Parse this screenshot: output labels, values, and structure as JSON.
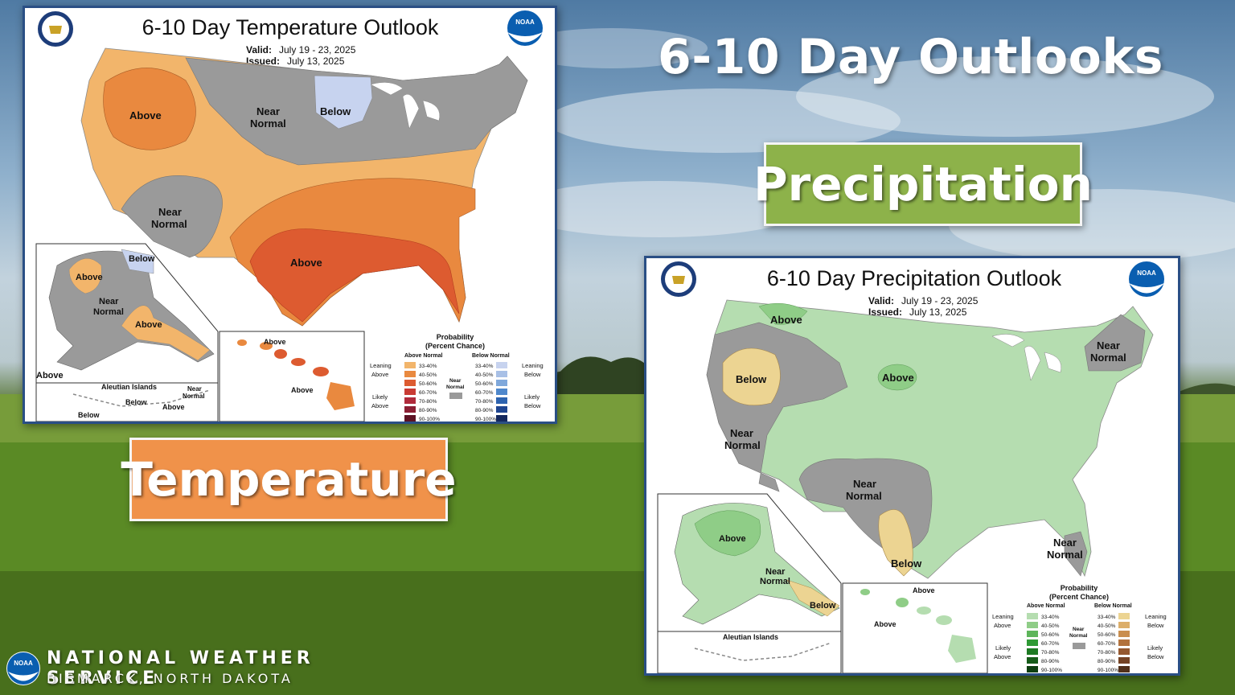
{
  "page_title": "6-10 Day Outlooks",
  "tags": {
    "precipitation": "Precipitation",
    "temperature": "Temperature"
  },
  "footer": {
    "line1": "NATIONAL WEATHER SERVICE",
    "line2": "BISMARCK, NORTH DAKOTA",
    "logo_text": "NOAA"
  },
  "temperature_map": {
    "title": "6-10 Day Temperature Outlook",
    "valid_label": "Valid:",
    "valid_value": "July 19 - 23, 2025",
    "issued_label": "Issued:",
    "issued_value": "July 13, 2025",
    "regions": {
      "above_nw": "Above",
      "near_normal_north": "Near",
      "near_normal_north2": "Normal",
      "below_mn": "Below",
      "near_normal_sw": "Near",
      "near_normal_sw2": "Normal",
      "above_south": "Above"
    },
    "alaska": {
      "below": "Below",
      "above_w": "Above",
      "near": "Near",
      "normal": "Normal",
      "above_s": "Above",
      "above_left": "Above",
      "aleutian_title": "Aleutian Islands",
      "aleutian_below1": "Below",
      "aleutian_below2": "Below",
      "aleutian_above": "Above",
      "aleutian_near": "Near",
      "aleutian_normal": "Normal"
    },
    "hawaii": {
      "above1": "Above",
      "above2": "Above"
    },
    "legend": {
      "title1": "Probability",
      "title2": "(Percent Chance)",
      "above_header": "Above Normal",
      "below_header": "Below Normal",
      "leaning_above": "Leaning",
      "leaning_above2": "Above",
      "likely_above": "Likely",
      "likely_above2": "Above",
      "leaning_below": "Leaning",
      "leaning_below2": "Below",
      "likely_below": "Likely",
      "likely_below2": "Below",
      "near_normal": "Near",
      "near_normal2": "Normal",
      "bins": [
        "33-40%",
        "40-50%",
        "50-60%",
        "60-70%",
        "70-80%",
        "80-90%",
        "90-100%"
      ],
      "above_colors": [
        "#f2b56b",
        "#e9893f",
        "#dd5b30",
        "#c93b34",
        "#b02b3c",
        "#8b1f34",
        "#5e1224"
      ],
      "below_colors": [
        "#c7d3ef",
        "#a8c0e6",
        "#7fa8db",
        "#4f88cc",
        "#2e64b0",
        "#1f4590",
        "#14285e"
      ]
    }
  },
  "precipitation_map": {
    "title": "6-10 Day Precipitation Outlook",
    "valid_label": "Valid:",
    "valid_value": "July 19 - 23, 2025",
    "issued_label": "Issued:",
    "issued_value": "July 13, 2025",
    "regions": {
      "above_nw": "Above",
      "below_or": "Below",
      "near_ca": "Near",
      "near_ca2": "Normal",
      "above_sd": "Above",
      "near_ne": "Near",
      "near_ne2": "Normal",
      "near_sw": "Near",
      "near_sw2": "Normal",
      "below_tx": "Below",
      "near_fl": "Near",
      "near_fl2": "Normal"
    },
    "alaska": {
      "above": "Above",
      "near": "Near",
      "normal": "Normal",
      "below": "Below",
      "aleutian_title": "Aleutian Islands"
    },
    "hawaii": {
      "above1": "Above",
      "above2": "Above"
    },
    "legend": {
      "title1": "Probability",
      "title2": "(Percent Chance)",
      "above_header": "Above Normal",
      "below_header": "Below Normal",
      "leaning_above": "Leaning",
      "leaning_above2": "Above",
      "likely_above": "Likely",
      "likely_above2": "Above",
      "leaning_below": "Leaning",
      "leaning_below2": "Below",
      "likely_below": "Likely",
      "likely_below2": "Below",
      "near_normal": "Near",
      "near_normal2": "Normal",
      "bins": [
        "33-40%",
        "40-50%",
        "50-60%",
        "60-70%",
        "70-80%",
        "80-90%",
        "90-100%"
      ],
      "above_colors": [
        "#b5ddb0",
        "#8fcd87",
        "#5db55a",
        "#2f9a35",
        "#1d7a23",
        "#165c19",
        "#0e3f10"
      ],
      "below_colors": [
        "#ecd492",
        "#dcae6a",
        "#c98e4f",
        "#b2723d",
        "#95582f",
        "#754324",
        "#52301a"
      ]
    }
  }
}
